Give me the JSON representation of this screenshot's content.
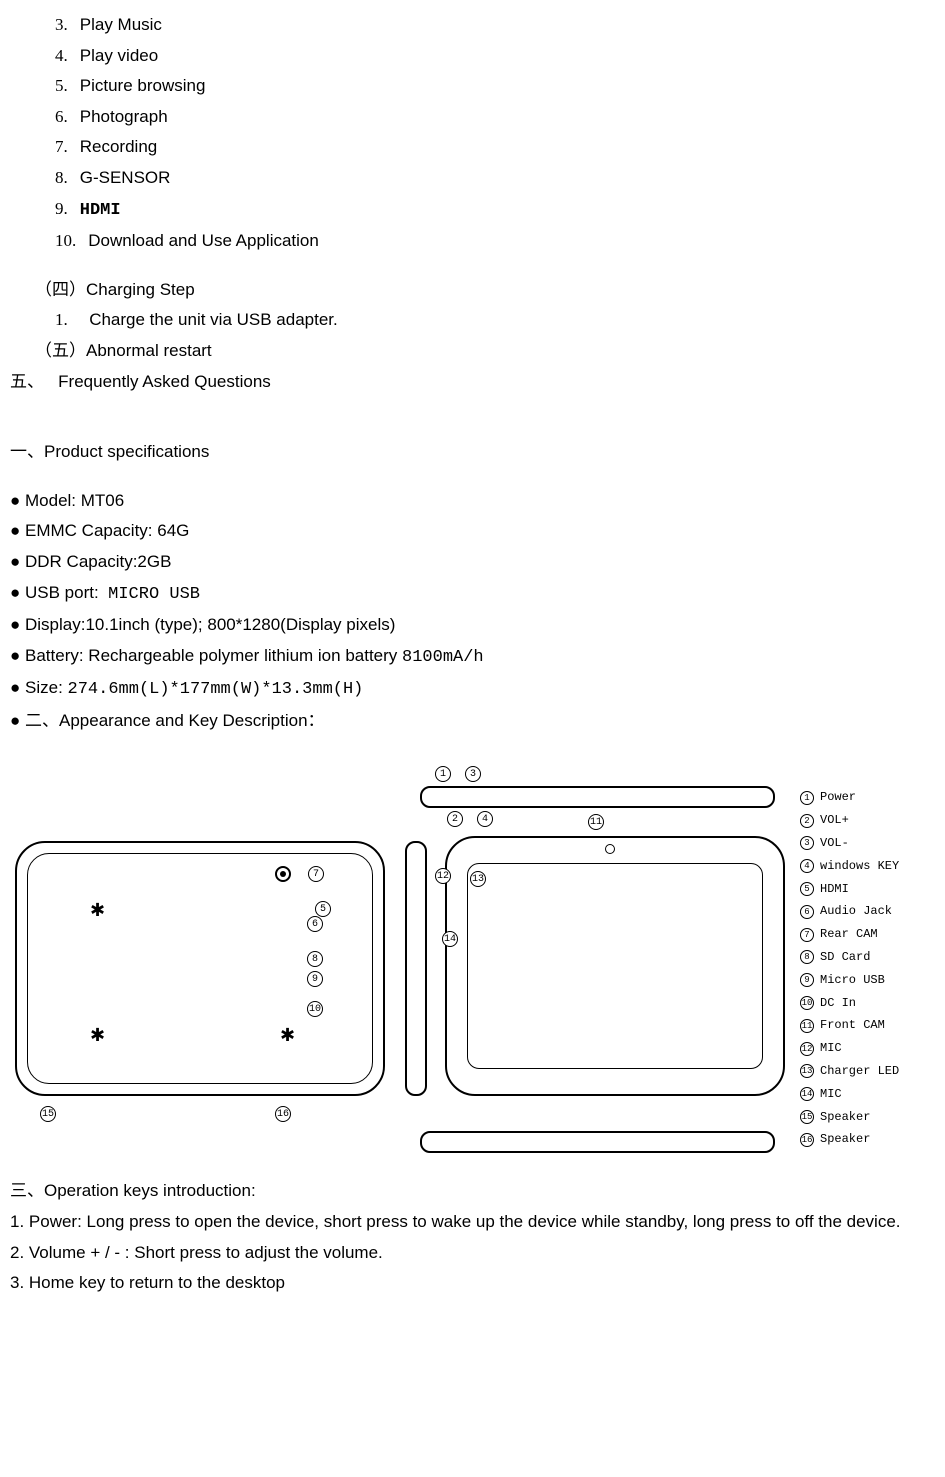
{
  "toc": {
    "items": [
      {
        "num": "3.",
        "label": "Play Music"
      },
      {
        "num": "4.",
        "label": "Play video"
      },
      {
        "num": "5.",
        "label": "Picture browsing"
      },
      {
        "num": "6.",
        "label": "Photograph"
      },
      {
        "num": "7.",
        "label": "Recording"
      },
      {
        "num": "8.",
        "label": "G-SENSOR"
      },
      {
        "num": "9.",
        "label": "HDMI",
        "mono": true
      },
      {
        "num": "10.",
        "label": "Download and Use Application"
      }
    ],
    "section4": {
      "prefix": "（四）",
      "label": "Charging Step"
    },
    "section4_items": [
      {
        "num": "1.",
        "label": "Charge the unit via USB adapter."
      }
    ],
    "section5": {
      "prefix": "（五）",
      "label": "Abnormal restart"
    },
    "section_faq": {
      "prefix": "五、",
      "label": "Frequently Asked Questions"
    }
  },
  "prod_specs": {
    "header_prefix": "一、",
    "header": "Product specifications",
    "items": [
      {
        "label": "Model: MT06"
      },
      {
        "label": "EMMC Capacity:   64G"
      },
      {
        "label": "DDR Capacity:2GB"
      },
      {
        "label": "USB port:",
        "suffix": "MICRO USB"
      },
      {
        "label": "Display:10.1inch (type); 800*1280(Display pixels)"
      },
      {
        "label": "Battery: Rechargeable polymer lithium ion battery ",
        "suffix_mono": "8100mA/h"
      },
      {
        "label": "Size: ",
        "suffix_mono": "274.6mm(L)*177mm(W)*13.3mm(H)"
      },
      {
        "prefix": "二、",
        "label": "Appearance and Key Description："
      }
    ]
  },
  "diagram": {
    "legend": [
      {
        "num": "1",
        "label": "Power"
      },
      {
        "num": "2",
        "label": "VOL+"
      },
      {
        "num": "3",
        "label": "VOL-"
      },
      {
        "num": "4",
        "label": "windows KEY"
      },
      {
        "num": "5",
        "label": "HDMI"
      },
      {
        "num": "6",
        "label": "Audio Jack"
      },
      {
        "num": "7",
        "label": "Rear CAM"
      },
      {
        "num": "8",
        "label": "SD Card"
      },
      {
        "num": "9",
        "label": "Micro USB"
      },
      {
        "num": "10",
        "label": "DC In"
      },
      {
        "num": "11",
        "label": "Front CAM"
      },
      {
        "num": "12",
        "label": "MIC"
      },
      {
        "num": "13",
        "label": "Charger LED"
      },
      {
        "num": "14",
        "label": "MIC"
      },
      {
        "num": "15",
        "label": "Speaker"
      },
      {
        "num": "16",
        "label": "Speaker"
      }
    ]
  },
  "operation": {
    "header_prefix": "三、",
    "header": "Operation keys introduction:",
    "items": [
      "1. Power: Long press to open the device, short press to wake up the device while standby, long press to off the device.",
      "2. Volume + / - : Short press to adjust the volume.",
      "3. Home key to return to the desktop"
    ]
  }
}
